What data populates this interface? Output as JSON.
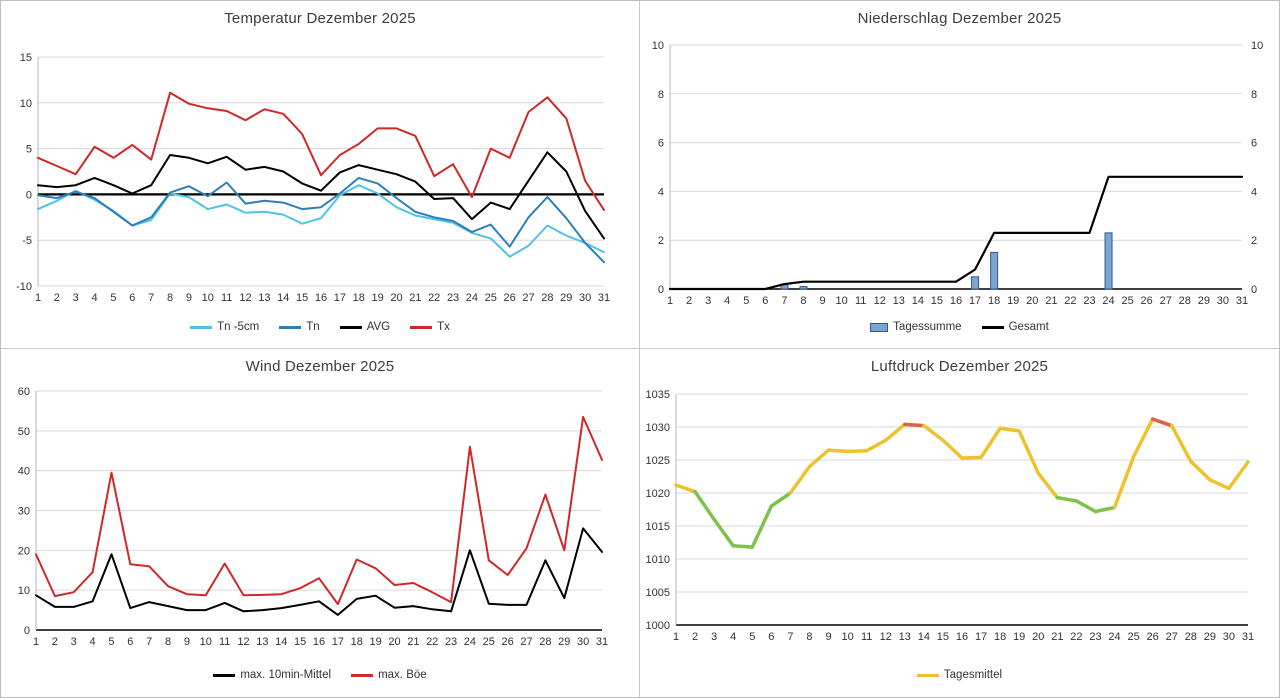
{
  "app": {
    "background_color": "#ffffff",
    "divider_color": "#c8c8c8",
    "grid_color": "#d9d9d9",
    "title_color": "#3d3d3d"
  },
  "days": [
    1,
    2,
    3,
    4,
    5,
    6,
    7,
    8,
    9,
    10,
    11,
    12,
    13,
    14,
    15,
    16,
    17,
    18,
    19,
    20,
    21,
    22,
    23,
    24,
    25,
    26,
    27,
    28,
    29,
    30,
    31
  ],
  "chart_data": [
    {
      "key": "temperatur",
      "type": "line",
      "title": "Temperatur Dezember 2025",
      "xlabel": "",
      "ylabel": "",
      "ylim": [
        -10,
        15
      ],
      "yticks": [
        -10,
        -5,
        0,
        5,
        10,
        15
      ],
      "grid": true,
      "zero_line": true,
      "bottom_axis": "gray",
      "legend_position": "bottom",
      "series": [
        {
          "name": "Tn -5cm",
          "color": "#4ec3e6",
          "width": 2,
          "values": [
            -1.6,
            -0.7,
            0.4,
            -0.6,
            -1.8,
            -3.4,
            -2.8,
            0.1,
            -0.3,
            -1.6,
            -1.1,
            -2.0,
            -1.9,
            -2.2,
            -3.2,
            -2.6,
            -0.1,
            1.0,
            0.1,
            -1.4,
            -2.3,
            -2.7,
            -3.1,
            -4.2,
            -4.8,
            -6.8,
            -5.6,
            -3.4,
            -4.5,
            -5.3,
            -6.3
          ]
        },
        {
          "name": "Tn",
          "color": "#2e7eb8",
          "width": 2,
          "values": [
            -0.1,
            -0.4,
            0.3,
            -0.4,
            -1.9,
            -3.4,
            -2.5,
            0.2,
            0.9,
            -0.2,
            1.3,
            -1.0,
            -0.7,
            -0.9,
            -1.6,
            -1.4,
            0.1,
            1.8,
            1.2,
            -0.4,
            -1.9,
            -2.5,
            -2.9,
            -4.1,
            -3.3,
            -5.7,
            -2.5,
            -0.3,
            -2.6,
            -5.3,
            -7.4
          ]
        },
        {
          "name": "AVG",
          "color": "#000000",
          "width": 2,
          "values": [
            1.0,
            0.8,
            1.0,
            1.8,
            1.0,
            0.1,
            1.0,
            4.3,
            4.0,
            3.4,
            4.1,
            2.7,
            3.0,
            2.5,
            1.2,
            0.4,
            2.4,
            3.2,
            2.7,
            2.2,
            1.4,
            -0.5,
            -0.4,
            -2.7,
            -0.9,
            -1.6,
            1.5,
            4.6,
            2.5,
            -1.8,
            -4.8
          ]
        },
        {
          "name": "Tx",
          "color": "#d02828",
          "width": 2,
          "values": [
            4.0,
            3.1,
            2.2,
            5.2,
            4.0,
            5.4,
            3.8,
            11.1,
            9.9,
            9.4,
            9.1,
            8.1,
            9.3,
            8.8,
            6.6,
            2.1,
            4.3,
            5.5,
            7.2,
            7.2,
            6.4,
            2.0,
            3.3,
            -0.3,
            5.0,
            4.0,
            9.0,
            10.6,
            8.3,
            1.5,
            -1.7
          ]
        }
      ]
    },
    {
      "key": "niederschlag",
      "type": "bar",
      "title": "Niederschlag Dezember 2025",
      "xlabel": "",
      "ylabel": "",
      "ylim": [
        0,
        10
      ],
      "yticks": [
        0,
        2,
        4,
        6,
        8,
        10
      ],
      "grid": true,
      "dual_axis": true,
      "left_label_color": "#2e75b6",
      "bottom_axis": "black",
      "legend_position": "bottom",
      "bars": {
        "name": "Tagessumme",
        "fill": "#7ca5d2",
        "stroke": "#2e5b8f",
        "values": [
          0,
          0,
          0,
          0,
          0,
          0,
          0.2,
          0.1,
          0,
          0,
          0,
          0,
          0,
          0,
          0,
          0,
          0.5,
          1.5,
          0,
          0,
          0,
          0,
          0,
          2.3,
          0,
          0,
          0,
          0,
          0,
          0,
          0
        ]
      },
      "series": [
        {
          "name": "Gesamt",
          "color": "#000000",
          "width": 2.2,
          "values": [
            0,
            0,
            0,
            0,
            0,
            0,
            0.2,
            0.3,
            0.3,
            0.3,
            0.3,
            0.3,
            0.3,
            0.3,
            0.3,
            0.3,
            0.8,
            2.3,
            2.3,
            2.3,
            2.3,
            2.3,
            2.3,
            4.6,
            4.6,
            4.6,
            4.6,
            4.6,
            4.6,
            4.6,
            4.6
          ]
        }
      ]
    },
    {
      "key": "wind",
      "type": "line",
      "title": "Wind Dezember 2025",
      "xlabel": "",
      "ylabel": "",
      "ylim": [
        0,
        60
      ],
      "yticks": [
        0,
        10,
        20,
        30,
        40,
        50,
        60
      ],
      "grid": true,
      "bottom_axis": "black",
      "legend_position": "bottom",
      "series": [
        {
          "name": "max. 10min-Mittel",
          "color": "#000000",
          "width": 2,
          "values": [
            8.7,
            5.8,
            5.8,
            7.2,
            19.0,
            5.5,
            7.0,
            6.0,
            5.0,
            5.0,
            6.8,
            4.7,
            5.0,
            5.5,
            6.3,
            7.2,
            3.8,
            7.8,
            8.6,
            5.6,
            6.0,
            5.2,
            4.7,
            20.0,
            6.6,
            6.3,
            6.3,
            17.5,
            8.0,
            25.5,
            19.6
          ]
        },
        {
          "name": "max. Böe",
          "color": "#d02828",
          "width": 2,
          "values": [
            19.0,
            8.5,
            9.5,
            14.5,
            39.5,
            16.5,
            16.0,
            11.0,
            9.0,
            8.7,
            16.7,
            8.7,
            8.8,
            9.0,
            10.5,
            13.0,
            6.5,
            17.7,
            15.5,
            11.3,
            11.8,
            9.5,
            7.0,
            46.0,
            17.5,
            13.8,
            20.5,
            34.0,
            20.0,
            53.5,
            42.7
          ]
        }
      ]
    },
    {
      "key": "luftdruck",
      "type": "line",
      "title": "Luftdruck Dezember 2025",
      "xlabel": "",
      "ylabel": "",
      "ylim": [
        1000,
        1035
      ],
      "yticks": [
        1000,
        1005,
        1010,
        1015,
        1020,
        1025,
        1030,
        1035
      ],
      "grid": true,
      "bottom_axis": "black",
      "legend_position": "bottom",
      "series": [
        {
          "name": "Tagesmittel",
          "color": "#eec22e",
          "width": 3.5,
          "multicolor": {
            "low_threshold": 1020,
            "high_threshold": 1030,
            "low_color": "#7dc24b",
            "mid_color": "#eec22e",
            "high_color": "#e0604a"
          },
          "values": [
            1021.2,
            1020.2,
            1016.0,
            1012.0,
            1011.8,
            1018.0,
            1020.0,
            1024.0,
            1026.5,
            1026.3,
            1026.4,
            1028.0,
            1030.4,
            1030.2,
            1028.0,
            1025.3,
            1025.4,
            1029.8,
            1029.4,
            1023.0,
            1019.3,
            1018.8,
            1017.2,
            1017.8,
            1025.5,
            1031.2,
            1030.2,
            1024.8,
            1022.0,
            1020.7,
            1024.7
          ]
        }
      ]
    }
  ]
}
